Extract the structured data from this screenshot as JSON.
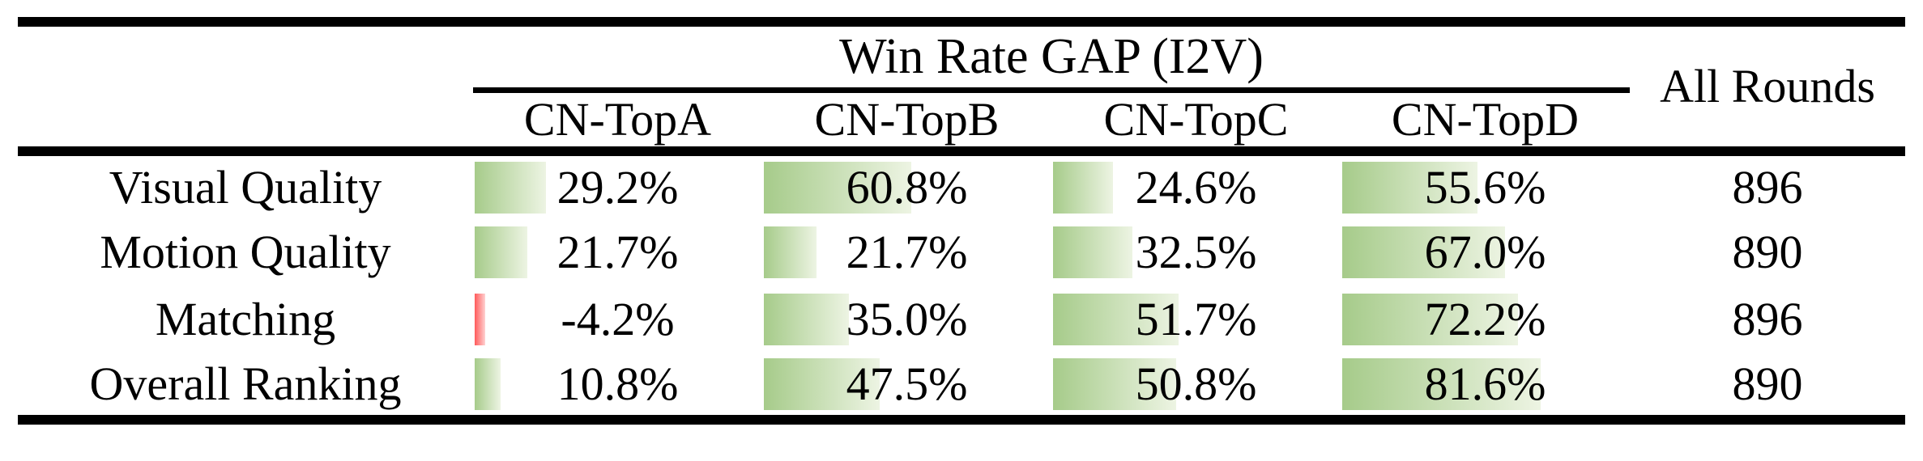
{
  "table": {
    "group_header": "Win Rate GAP (I2V)",
    "all_rounds_header": "All Rounds",
    "columns": [
      "CN-TopA",
      "CN-TopB",
      "CN-TopC",
      "CN-TopD"
    ],
    "rows": [
      {
        "label": "Visual Quality",
        "cells": [
          {
            "text": "29.2%",
            "value": 29.2
          },
          {
            "text": "60.8%",
            "value": 60.8
          },
          {
            "text": "24.6%",
            "value": 24.6
          },
          {
            "text": "55.6%",
            "value": 55.6
          }
        ],
        "all_rounds": "896"
      },
      {
        "label": "Motion Quality",
        "cells": [
          {
            "text": "21.7%",
            "value": 21.7
          },
          {
            "text": "21.7%",
            "value": 21.7
          },
          {
            "text": "32.5%",
            "value": 32.5
          },
          {
            "text": "67.0%",
            "value": 67.0
          }
        ],
        "all_rounds": "890"
      },
      {
        "label": "Matching",
        "cells": [
          {
            "text": "-4.2%",
            "value": -4.2
          },
          {
            "text": "35.0%",
            "value": 35.0
          },
          {
            "text": "51.7%",
            "value": 51.7
          },
          {
            "text": "72.2%",
            "value": 72.2
          }
        ],
        "all_rounds": "896"
      },
      {
        "label": "Overall Ranking",
        "cells": [
          {
            "text": "10.8%",
            "value": 10.8
          },
          {
            "text": "47.5%",
            "value": 47.5
          },
          {
            "text": "50.8%",
            "value": 50.8
          },
          {
            "text": "81.6%",
            "value": 81.6
          }
        ],
        "all_rounds": "890"
      }
    ]
  },
  "colors": {
    "rule": "#000000",
    "bar_positive_start": "#a6cb8a",
    "bar_positive_end": "#edf4e3",
    "bar_negative_start": "#ff5a5a",
    "bar_negative_end": "#ffd2d2"
  },
  "chart_data": {
    "type": "table",
    "title": "Win Rate GAP (I2V)",
    "row_labels": [
      "Visual Quality",
      "Motion Quality",
      "Matching",
      "Overall Ranking"
    ],
    "columns": [
      "CN-TopA",
      "CN-TopB",
      "CN-TopC",
      "CN-TopD"
    ],
    "win_rate_gap_percent": [
      [
        29.2,
        60.8,
        24.6,
        55.6
      ],
      [
        21.7,
        21.7,
        32.5,
        67.0
      ],
      [
        -4.2,
        35.0,
        51.7,
        72.2
      ],
      [
        10.8,
        47.5,
        50.8,
        81.6
      ]
    ],
    "all_rounds": [
      896,
      890,
      896,
      890
    ],
    "layout_hints": "in-cell gradient data bars, left-anchored, scale 0-100%; positive bars green, negative bars red; values overlaid centered"
  }
}
